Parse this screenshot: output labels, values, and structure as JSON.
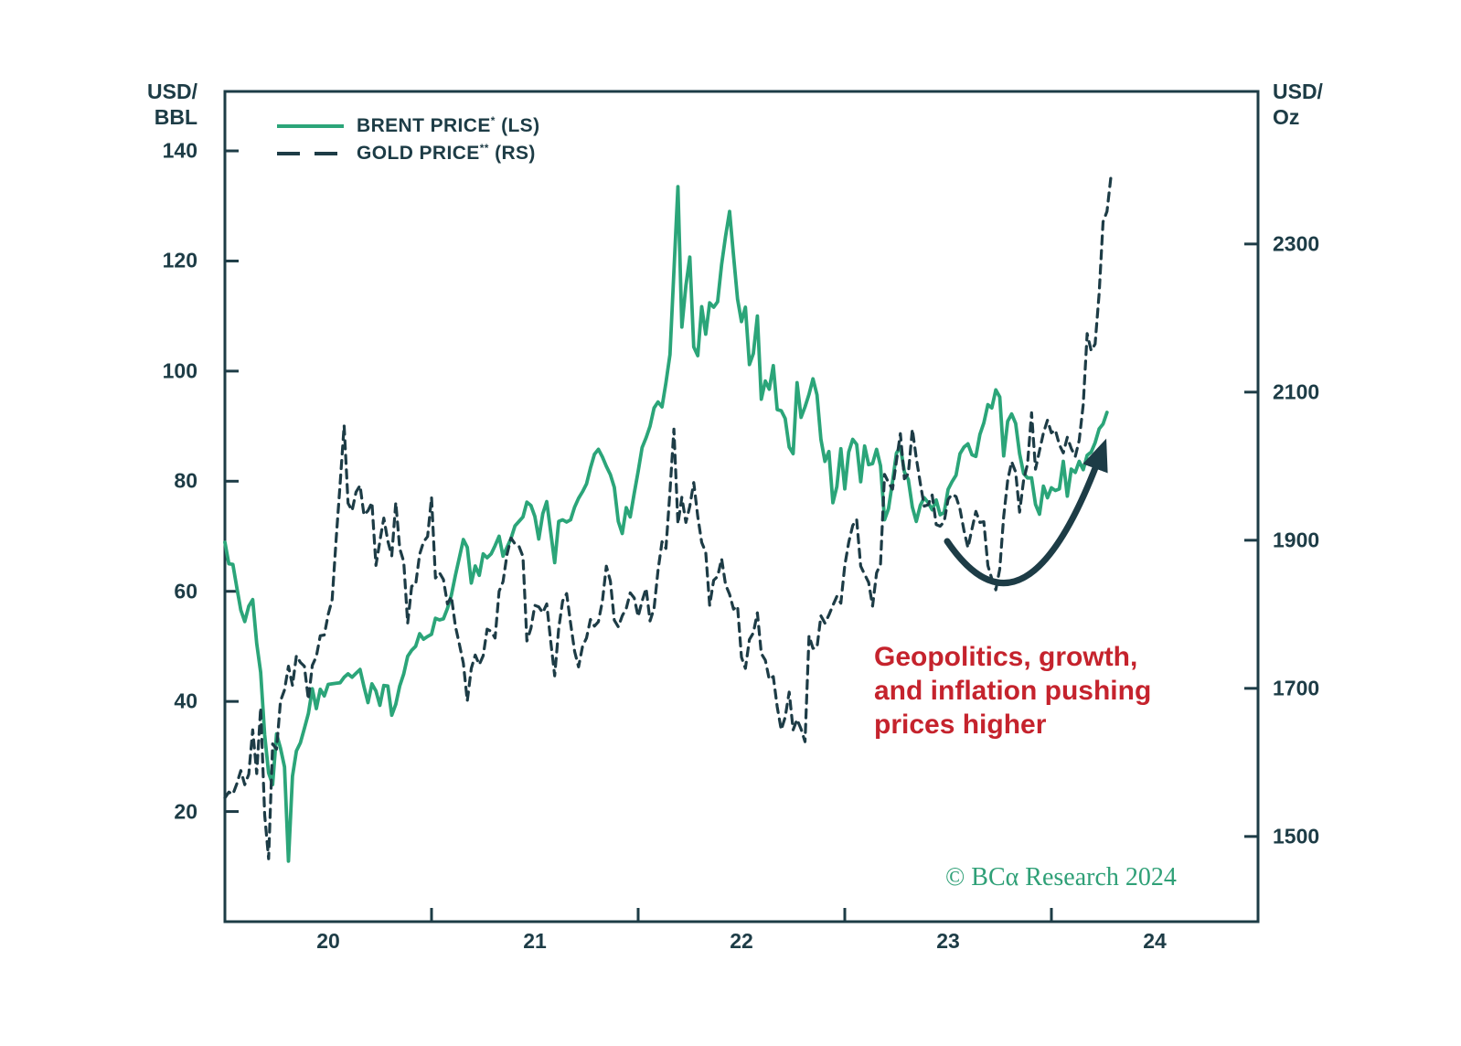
{
  "page": {
    "background": "#ffffff"
  },
  "colors": {
    "axis": "#1d3c46",
    "brent_green": "#2ba579",
    "gold_dark": "#1d3c46",
    "annotation_red": "#c5232d",
    "copyright_green": "#2fa077"
  },
  "units": {
    "left_line1": "USD/",
    "left_line2": "BBL",
    "right_line1": "USD/",
    "right_line2": "Oz"
  },
  "legend": {
    "items": [
      {
        "swatch": "solid",
        "color": "#2ba579",
        "name": "BRENT PRICE",
        "sup": "*",
        "suffix": " (LS)"
      },
      {
        "swatch": "dashed",
        "color": "#1d3c46",
        "name": "GOLD PRICE",
        "sup": "**",
        "suffix": " (RS)"
      }
    ]
  },
  "annotation": {
    "text": "Geopolitics, growth,\nand inflation pushing\nprices higher"
  },
  "copyright": {
    "text": "© BCα Research 2024"
  },
  "chart_data": {
    "type": "line",
    "title": "",
    "grid": false,
    "legend_position": "top-left",
    "x_axis": {
      "range": [
        2020.0,
        2025.0
      ],
      "ticks": [
        2021,
        2022,
        2023,
        2024
      ],
      "labels": [
        {
          "text": "20",
          "t": 2020.5
        },
        {
          "text": "21",
          "t": 2021.5
        },
        {
          "text": "22",
          "t": 2022.5
        },
        {
          "text": "23",
          "t": 2023.5
        },
        {
          "text": "24",
          "t": 2024.5
        }
      ]
    },
    "left_axis": {
      "label": "USD/BBL",
      "range": [
        0,
        150.8
      ],
      "ticks": [
        140,
        120,
        100,
        80,
        60,
        40,
        20
      ]
    },
    "right_axis": {
      "label": "USD/Oz",
      "range": [
        1385,
        2506
      ],
      "ticks": [
        2300,
        2100,
        1900,
        1700,
        1500
      ]
    },
    "series": [
      {
        "name": "BRENT PRICE* (LS)",
        "axis": "left",
        "color": "#2ba579",
        "style": "solid",
        "unit": "USD/BBL",
        "t_start": 2020.0,
        "t_step": 0.0192308,
        "values": [
          68.9,
          65.0,
          64.9,
          60.7,
          56.6,
          54.5,
          57.3,
          58.5,
          50.5,
          45.3,
          33.9,
          27.0,
          24.9,
          34.1,
          31.5,
          28.1,
          11.0,
          26.4,
          31.0,
          32.5,
          35.1,
          37.8,
          42.3,
          38.7,
          42.2,
          41.0,
          43.1,
          43.2,
          43.3,
          43.4,
          44.4,
          45.0,
          44.4,
          45.1,
          45.8,
          42.7,
          39.8,
          43.2,
          41.9,
          39.3,
          42.9,
          42.8,
          37.5,
          39.5,
          42.8,
          45.0,
          48.2,
          49.3,
          50.0,
          52.3,
          51.3,
          51.8,
          52.2,
          55.1,
          54.8,
          55.0,
          56.9,
          59.3,
          62.9,
          66.1,
          69.4,
          68.0,
          61.5,
          64.6,
          62.9,
          66.8,
          66.1,
          66.8,
          68.3,
          70.0,
          66.4,
          68.0,
          69.6,
          71.9,
          72.7,
          73.5,
          76.2,
          75.6,
          73.6,
          69.5,
          74.1,
          76.3,
          70.7,
          65.2,
          72.7,
          73.0,
          72.6,
          73.0,
          75.3,
          76.9,
          78.1,
          79.5,
          82.4,
          84.9,
          85.8,
          84.4,
          82.7,
          81.2,
          78.9,
          72.7,
          70.5,
          75.2,
          73.5,
          77.8,
          81.8,
          86.1,
          87.9,
          90.0,
          93.3,
          94.4,
          93.5,
          97.9,
          103.0,
          118.1,
          133.5,
          108.0,
          115.5,
          120.7,
          104.4,
          102.8,
          111.7,
          106.7,
          112.4,
          111.6,
          112.6,
          119.4,
          124.5,
          129.0,
          121.0,
          113.1,
          109.0,
          111.6,
          101.2,
          103.2,
          110.0,
          94.9,
          98.2,
          96.7,
          101.0,
          93.0,
          92.8,
          91.4,
          86.2,
          85.0,
          97.9,
          91.6,
          93.5,
          95.8,
          98.6,
          95.7,
          87.6,
          83.6,
          85.4,
          76.1,
          79.0,
          85.9,
          78.6,
          85.3,
          87.6,
          86.7,
          79.9,
          86.4,
          83.0,
          83.2,
          85.8,
          82.8,
          73.0,
          75.0,
          79.9,
          85.1,
          86.3,
          81.7,
          80.3,
          75.3,
          72.7,
          75.6,
          77.0,
          76.1,
          74.8,
          76.6,
          73.9,
          74.3,
          78.5,
          79.9,
          81.1,
          85.0,
          86.2,
          86.8,
          84.8,
          84.5,
          88.5,
          90.6,
          93.9,
          93.3,
          96.6,
          95.3,
          84.6,
          90.9,
          92.2,
          90.5,
          85.0,
          81.4,
          80.6,
          80.6,
          75.8,
          74.0,
          79.1,
          77.0,
          78.8,
          78.3,
          78.6,
          83.6,
          77.3,
          82.2,
          81.6,
          83.6,
          82.1,
          84.7,
          85.3,
          87.0,
          89.5,
          90.4,
          92.5
        ]
      },
      {
        "name": "GOLD PRICE** (RS)",
        "axis": "right",
        "color": "#1d3c46",
        "style": "dashed",
        "unit": "USD/Oz",
        "t_start": 2020.0,
        "t_step": 0.0192308,
        "values": [
          1552,
          1560,
          1557,
          1571,
          1589,
          1570,
          1584,
          1644,
          1585,
          1674,
          1529,
          1470,
          1625,
          1618,
          1683,
          1698,
          1730,
          1704,
          1744,
          1735,
          1730,
          1685,
          1731,
          1743,
          1771,
          1772,
          1800,
          1820,
          1902,
          1976,
          2055,
          1950,
          1940,
          1965,
          1974,
          1934,
          1940,
          1951,
          1866,
          1899,
          1930,
          1899,
          1879,
          1951,
          1889,
          1871,
          1788,
          1838,
          1840,
          1881,
          1898,
          1905,
          1958,
          1849,
          1856,
          1847,
          1814,
          1824,
          1784,
          1760,
          1734,
          1683,
          1727,
          1745,
          1732,
          1744,
          1780,
          1777,
          1768,
          1831,
          1844,
          1881,
          1903,
          1895,
          1892,
          1878,
          1764,
          1781,
          1812,
          1810,
          1802,
          1814,
          1763,
          1717,
          1781,
          1818,
          1828,
          1788,
          1750,
          1729,
          1757,
          1768,
          1793,
          1784,
          1790,
          1818,
          1865,
          1845,
          1792,
          1783,
          1798,
          1808,
          1829,
          1822,
          1797,
          1818,
          1835,
          1791,
          1808,
          1859,
          1898,
          1889,
          1966,
          2050,
          1922,
          1958,
          1924,
          1946,
          1978,
          1932,
          1897,
          1884,
          1812,
          1846,
          1851,
          1875,
          1840,
          1827,
          1807,
          1811,
          1742,
          1727,
          1766,
          1775,
          1802,
          1747,
          1738,
          1712,
          1716,
          1675,
          1644,
          1661,
          1695,
          1644,
          1658,
          1645,
          1628,
          1771,
          1754,
          1755,
          1798,
          1788,
          1799,
          1812,
          1824,
          1815,
          1866,
          1897,
          1920,
          1928,
          1865,
          1854,
          1843,
          1811,
          1856,
          1868,
          1989,
          1978,
          1969,
          2007,
          2044,
          1983,
          1990,
          2050,
          2011,
          1977,
          1946,
          1948,
          1961,
          1921,
          1919,
          1925,
          1955,
          1962,
          1959,
          1942,
          1913,
          1890,
          1915,
          1939,
          1924,
          1925,
          1866,
          1848,
          1833,
          1861,
          1932,
          1981,
          2006,
          1992,
          1938,
          1981,
          2003,
          2072,
          1996,
          2021,
          2045,
          2062,
          2045,
          2049,
          2029,
          2018,
          2039,
          2024,
          2013,
          2035,
          2083,
          2179,
          2156,
          2165,
          2233,
          2330,
          2344,
          2392
        ]
      }
    ],
    "annotations": [
      {
        "type": "text",
        "text": "Geopolitics, growth,\nand inflation pushing\nprices higher",
        "color": "#c5232d"
      },
      {
        "type": "arrow",
        "shape": "u-curve-up-right",
        "color": "#1d3c46"
      }
    ]
  }
}
